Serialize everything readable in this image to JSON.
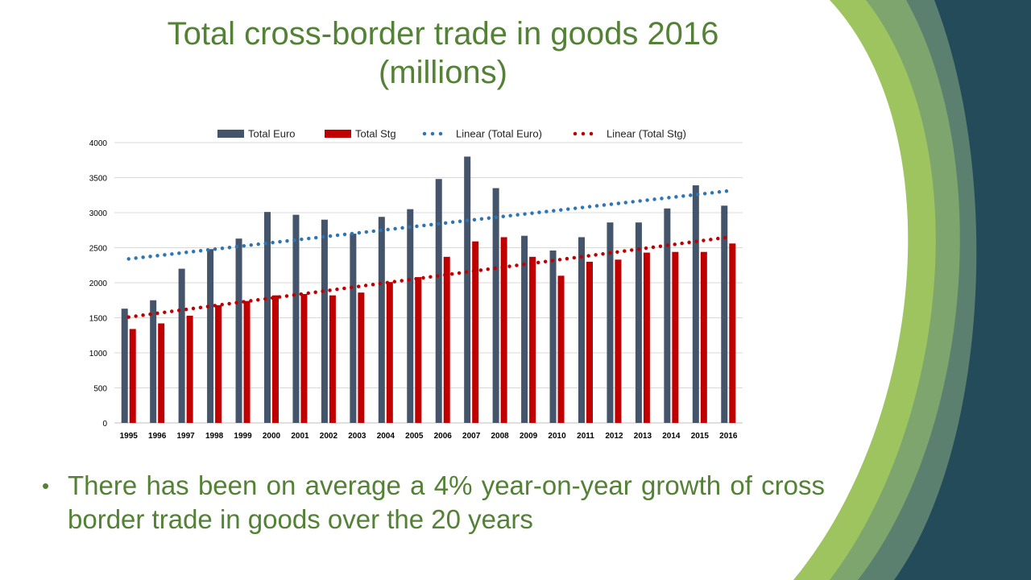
{
  "slide": {
    "title_line1": "Total cross-border trade in goods 2016",
    "title_line2": "(millions)",
    "bullet": "There has been on average a 4% year-on-year growth of cross border trade in goods over the 20 years",
    "bullet_marker": "•",
    "colors": {
      "title": "#538135",
      "deco_dark": "#244b5a",
      "deco_green_light": "#9dc45f",
      "deco_green_mid": "#7fa56e",
      "deco_green_dark": "#5b8070"
    }
  },
  "chart_data": {
    "type": "bar",
    "categories": [
      "1995",
      "1996",
      "1997",
      "1998",
      "1999",
      "2000",
      "2001",
      "2002",
      "2003",
      "2004",
      "2005",
      "2006",
      "2007",
      "2008",
      "2009",
      "2010",
      "2011",
      "2012",
      "2013",
      "2014",
      "2015",
      "2016"
    ],
    "series": [
      {
        "name": "Total Euro",
        "color": "#44546a",
        "values": [
          1630,
          1750,
          2200,
          2480,
          2630,
          3010,
          2970,
          2900,
          2700,
          2940,
          3050,
          3480,
          3800,
          3350,
          2670,
          2460,
          2650,
          2860,
          2860,
          3060,
          3390,
          3100
        ]
      },
      {
        "name": "Total Stg",
        "color": "#c00000",
        "values": [
          1340,
          1420,
          1530,
          1680,
          1740,
          1820,
          1840,
          1820,
          1860,
          2010,
          2080,
          2370,
          2590,
          2650,
          2370,
          2100,
          2300,
          2330,
          2430,
          2440,
          2440,
          2560
        ]
      }
    ],
    "trendlines": [
      {
        "name": "Linear (Total Euro)",
        "color": "#2e75b6",
        "start": 2340,
        "end": 3310
      },
      {
        "name": "Linear (Total Stg)",
        "color": "#c00000",
        "start": 1510,
        "end": 2650
      }
    ],
    "ylim": [
      0,
      4000
    ],
    "yticks": [
      "0",
      "500",
      "1000",
      "1500",
      "2000",
      "2500",
      "3000",
      "3500",
      "4000"
    ],
    "grid": true,
    "legend_position": "top",
    "xlabel": "",
    "ylabel": ""
  }
}
